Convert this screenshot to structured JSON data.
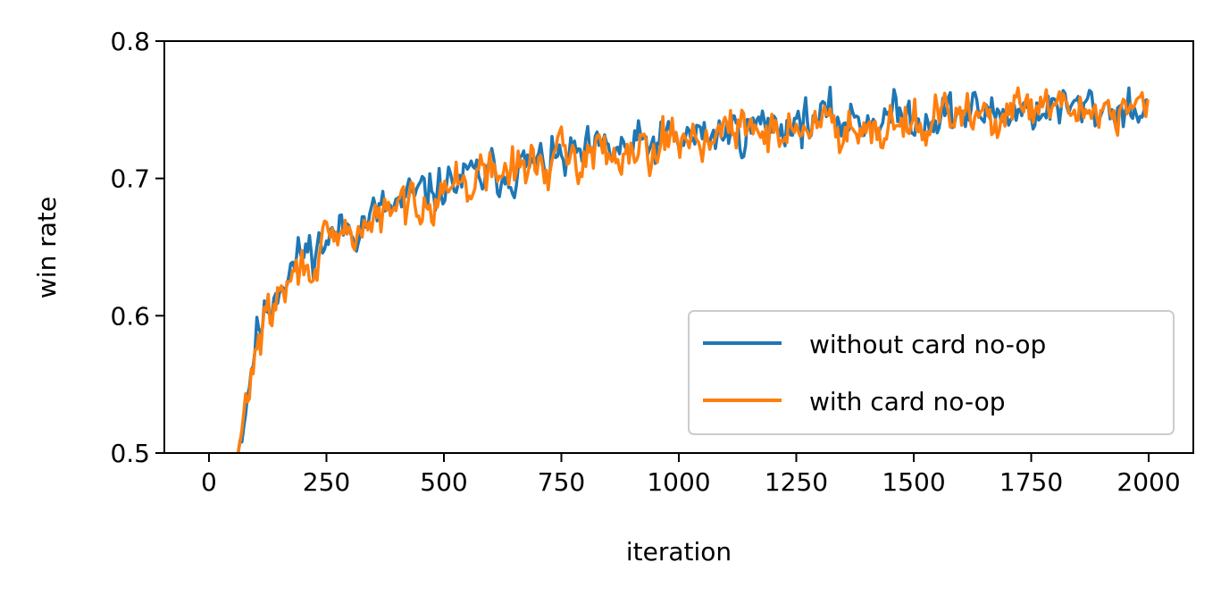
{
  "chart_data": {
    "type": "line",
    "title": "",
    "xlabel": "iteration",
    "ylabel": "win rate",
    "xlim": [
      -95,
      2095
    ],
    "ylim": [
      0.5,
      0.8
    ],
    "x_ticks": [
      "0",
      "250",
      "500",
      "750",
      "1000",
      "1250",
      "1500",
      "1750",
      "2000"
    ],
    "y_ticks": [
      "0.5",
      "0.6",
      "0.7",
      "0.8"
    ],
    "grid": false,
    "legend_position": "lower-right",
    "x_start": 62,
    "x_end": 2000,
    "x_step": 4,
    "series": [
      {
        "name": "without card no-op",
        "color": "#1f77b4",
        "trend": [
          [
            62,
            0.5
          ],
          [
            100,
            0.585
          ],
          [
            150,
            0.625
          ],
          [
            200,
            0.645
          ],
          [
            300,
            0.665
          ],
          [
            400,
            0.68
          ],
          [
            500,
            0.695
          ],
          [
            600,
            0.703
          ],
          [
            750,
            0.713
          ],
          [
            1000,
            0.728
          ],
          [
            1250,
            0.742
          ],
          [
            1500,
            0.745
          ],
          [
            1750,
            0.75
          ],
          [
            2000,
            0.752
          ]
        ],
        "noise": 0.0075,
        "seed": 11
      },
      {
        "name": "with card no-op",
        "color": "#ff7f0e",
        "trend": [
          [
            62,
            0.5
          ],
          [
            100,
            0.578
          ],
          [
            150,
            0.615
          ],
          [
            200,
            0.635
          ],
          [
            300,
            0.66
          ],
          [
            400,
            0.677
          ],
          [
            500,
            0.693
          ],
          [
            600,
            0.703
          ],
          [
            750,
            0.714
          ],
          [
            1000,
            0.73
          ],
          [
            1250,
            0.737
          ],
          [
            1500,
            0.742
          ],
          [
            1750,
            0.748
          ],
          [
            2000,
            0.753
          ]
        ],
        "noise": 0.0075,
        "seed": 29
      }
    ]
  }
}
